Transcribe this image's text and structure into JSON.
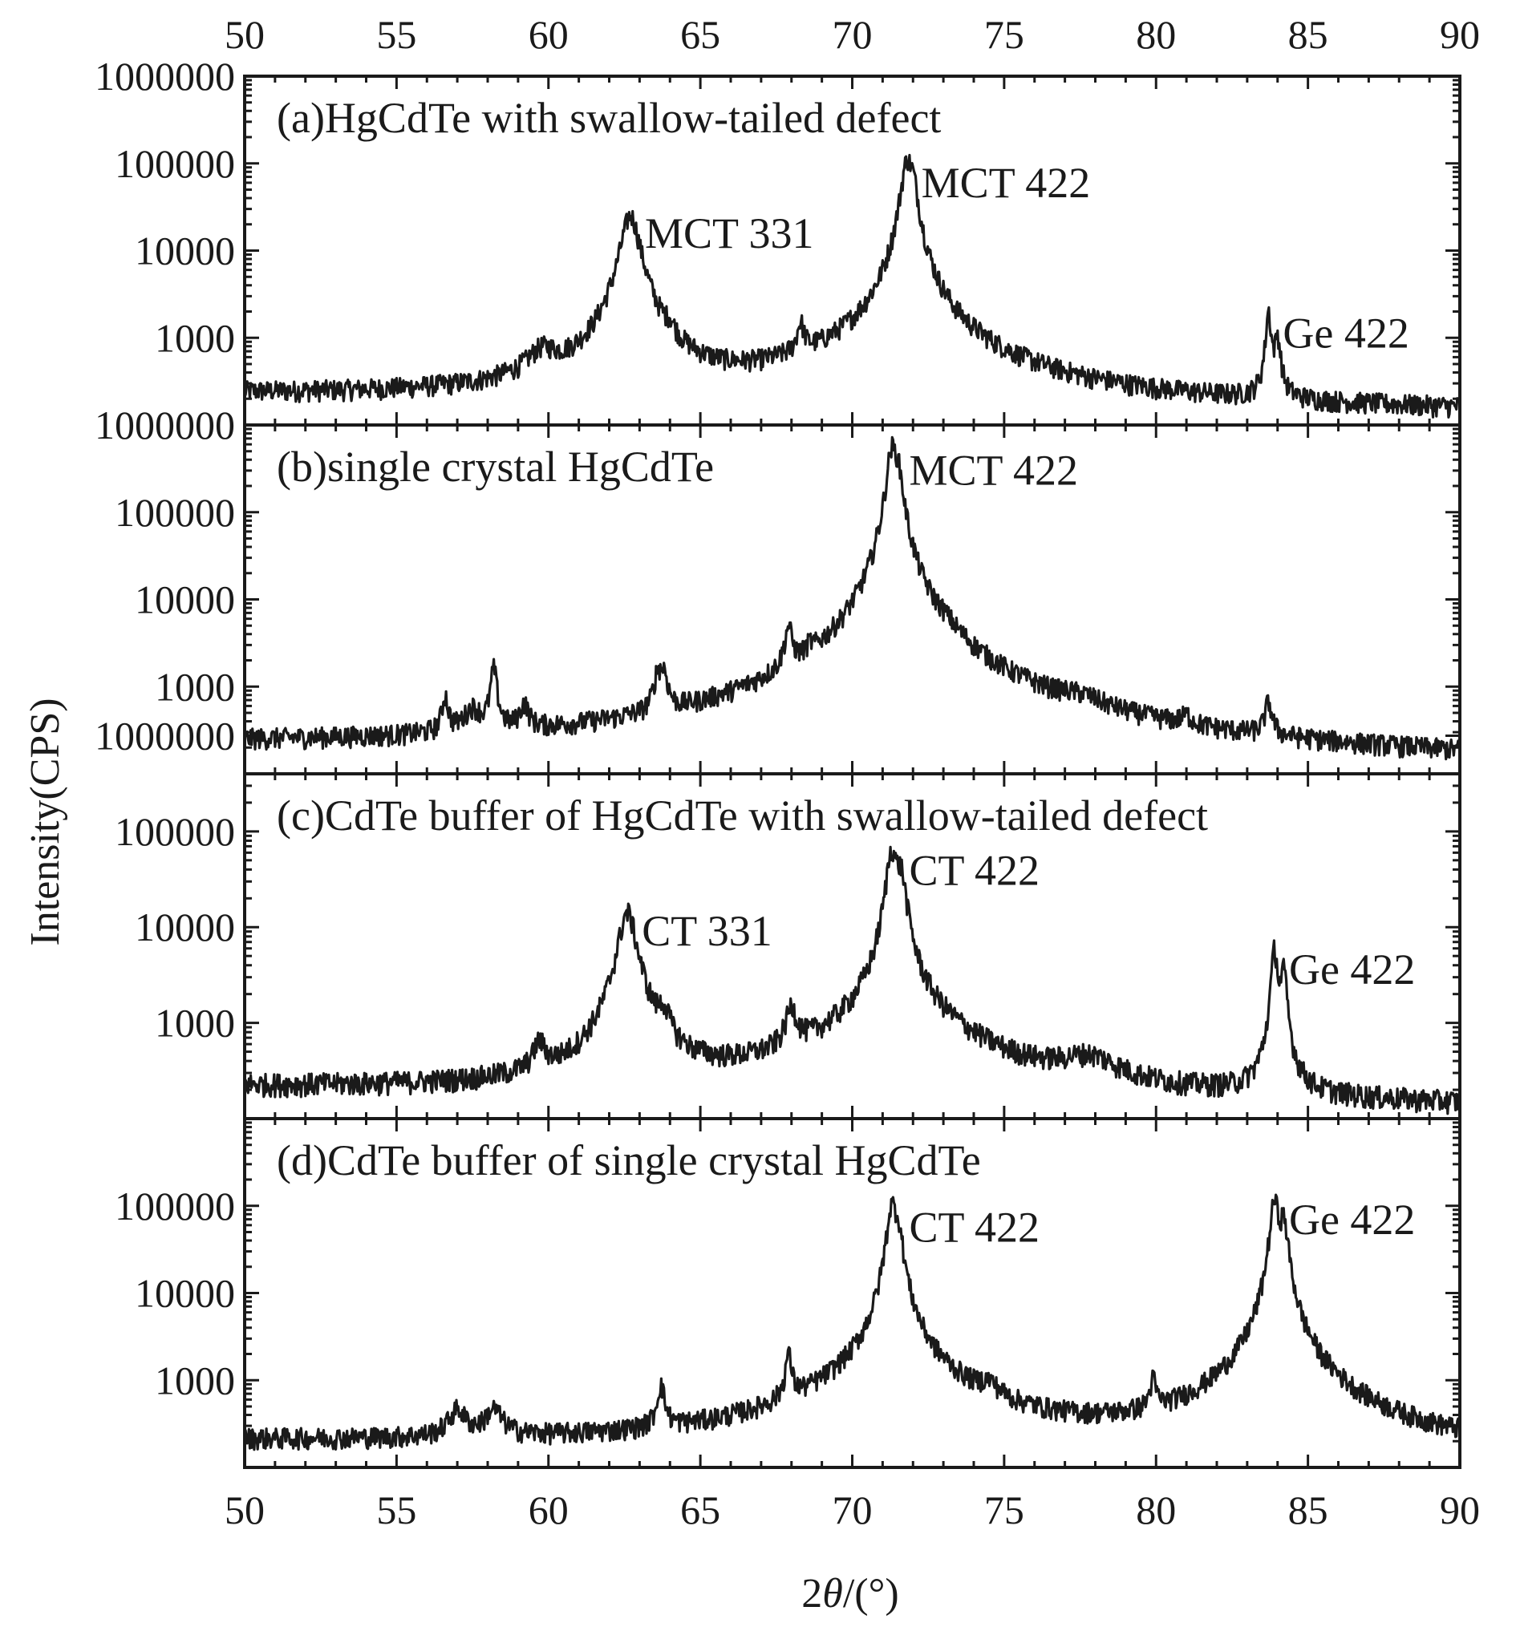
{
  "chart_data": {
    "type": "line",
    "layout": "stacked-panels",
    "xlabel": "2θ/(°)",
    "ylabel": "Intensity(CPS)",
    "xlim": [
      50,
      90
    ],
    "x_ticks": [
      "50",
      "55",
      "60",
      "65",
      "70",
      "75",
      "80",
      "85",
      "90"
    ],
    "y_scale": "log",
    "grid": false,
    "panels": [
      {
        "title": "(a)HgCdTe with swallow-tailed defect",
        "ylim": [
          100,
          1000000
        ],
        "y_ticks": [
          {
            "value": 1000000,
            "label": "1000000"
          },
          {
            "value": 100000,
            "label": "100000"
          },
          {
            "value": 10000,
            "label": "10000"
          },
          {
            "value": 1000,
            "label": "1000"
          }
        ],
        "baseline": {
          "start": 220,
          "end": 140
        },
        "peaks": [
          {
            "x": 59.8,
            "y": 330,
            "w": 0.5
          },
          {
            "x": 62.7,
            "y": 25000,
            "w": 0.28
          },
          {
            "x": 64.0,
            "y": 360,
            "w": 0.14
          },
          {
            "x": 68.3,
            "y": 800,
            "w": 0.12
          },
          {
            "x": 71.8,
            "y": 95000,
            "w": 0.18
          },
          {
            "x": 72.0,
            "y": 40000,
            "w": 0.16
          },
          {
            "x": 71.8,
            "y": 500,
            "w": 2.5
          },
          {
            "x": 83.7,
            "y": 1800,
            "w": 0.08
          },
          {
            "x": 84.0,
            "y": 800,
            "w": 0.09
          }
        ],
        "annotations": [
          {
            "text": "MCT 331",
            "x": 62.7,
            "y": 25000
          },
          {
            "text": "MCT 422",
            "x": 71.8,
            "y": 95000
          },
          {
            "text": "Ge 422",
            "x": 83.7,
            "y": 1800
          }
        ]
      },
      {
        "title": "(b)single crystal HgCdTe",
        "ylim": [
          100,
          1000000
        ],
        "y_ticks": [
          {
            "value": 1000000,
            "label": "1000000"
          },
          {
            "value": 100000,
            "label": "100000"
          },
          {
            "value": 10000,
            "label": "10000"
          },
          {
            "value": 1000,
            "label": "1000"
          }
        ],
        "baseline": {
          "start": 210,
          "end": 130
        },
        "peaks": [
          {
            "x": 56.6,
            "y": 480,
            "w": 0.1
          },
          {
            "x": 57.5,
            "y": 250,
            "w": 0.3
          },
          {
            "x": 58.2,
            "y": 1300,
            "w": 0.1
          },
          {
            "x": 59.2,
            "y": 300,
            "w": 0.15
          },
          {
            "x": 63.6,
            "y": 900,
            "w": 0.12
          },
          {
            "x": 63.8,
            "y": 900,
            "w": 0.12
          },
          {
            "x": 67.9,
            "y": 3200,
            "w": 0.12
          },
          {
            "x": 68.6,
            "y": 600,
            "w": 0.1
          },
          {
            "x": 71.3,
            "y": 480000,
            "w": 0.15
          },
          {
            "x": 71.5,
            "y": 250000,
            "w": 0.15
          },
          {
            "x": 71.4,
            "y": 1000,
            "w": 2.2
          },
          {
            "x": 73.0,
            "y": 800,
            "w": 0.4
          },
          {
            "x": 77.5,
            "y": 150,
            "w": 0.8
          },
          {
            "x": 81.0,
            "y": 100,
            "w": 0.2
          },
          {
            "x": 83.7,
            "y": 380,
            "w": 0.12
          }
        ],
        "annotations": [
          {
            "text": "MCT 422",
            "x": 71.4,
            "y": 480000
          }
        ]
      },
      {
        "title": "(c)CdTe buffer of HgCdTe with swallow-tailed defect",
        "ylim": [
          100,
          400000
        ],
        "y_ticks": [
          {
            "value": 1000000,
            "label": "1000000"
          },
          {
            "value": 100000,
            "label": "100000"
          },
          {
            "value": 10000,
            "label": "10000"
          },
          {
            "value": 1000,
            "label": "1000"
          }
        ],
        "baseline": {
          "start": 210,
          "end": 130
        },
        "peaks": [
          {
            "x": 59.7,
            "y": 300,
            "w": 0.2
          },
          {
            "x": 62.6,
            "y": 14000,
            "w": 0.28
          },
          {
            "x": 63.8,
            "y": 650,
            "w": 0.18
          },
          {
            "x": 68.0,
            "y": 900,
            "w": 0.18
          },
          {
            "x": 71.3,
            "y": 60000,
            "w": 0.16
          },
          {
            "x": 71.6,
            "y": 30000,
            "w": 0.16
          },
          {
            "x": 71.4,
            "y": 700,
            "w": 2.3
          },
          {
            "x": 77.8,
            "y": 180,
            "w": 1.0
          },
          {
            "x": 83.9,
            "y": 5500,
            "w": 0.1
          },
          {
            "x": 84.2,
            "y": 3000,
            "w": 0.1
          }
        ],
        "annotations": [
          {
            "text": "CT 331",
            "x": 62.6,
            "y": 14000
          },
          {
            "text": "CT 422",
            "x": 71.4,
            "y": 60000
          },
          {
            "text": "Ge 422",
            "x": 83.9,
            "y": 5500
          }
        ]
      },
      {
        "title": "(d)CdTe buffer of single crystal HgCdTe",
        "ylim": [
          100,
          1000000
        ],
        "y_ticks": [
          {
            "value": 100000,
            "label": "100000"
          },
          {
            "value": 10000,
            "label": "10000"
          },
          {
            "value": 1000,
            "label": "1000"
          }
        ],
        "baseline": {
          "start": 200,
          "end": 130
        },
        "peaks": [
          {
            "x": 57.0,
            "y": 230,
            "w": 0.3
          },
          {
            "x": 58.2,
            "y": 230,
            "w": 0.3
          },
          {
            "x": 63.7,
            "y": 600,
            "w": 0.12
          },
          {
            "x": 67.9,
            "y": 1400,
            "w": 0.1
          },
          {
            "x": 71.3,
            "y": 90000,
            "w": 0.15
          },
          {
            "x": 71.5,
            "y": 45000,
            "w": 0.15
          },
          {
            "x": 71.4,
            "y": 800,
            "w": 2.2
          },
          {
            "x": 74.5,
            "y": 250,
            "w": 0.3
          },
          {
            "x": 79.9,
            "y": 550,
            "w": 0.1
          },
          {
            "x": 83.9,
            "y": 110000,
            "w": 0.13
          },
          {
            "x": 84.2,
            "y": 60000,
            "w": 0.13
          },
          {
            "x": 84.0,
            "y": 800,
            "w": 1.6
          }
        ],
        "annotations": [
          {
            "text": "CT 422",
            "x": 71.4,
            "y": 90000
          },
          {
            "text": "Ge 422",
            "x": 83.9,
            "y": 110000
          }
        ]
      }
    ]
  }
}
